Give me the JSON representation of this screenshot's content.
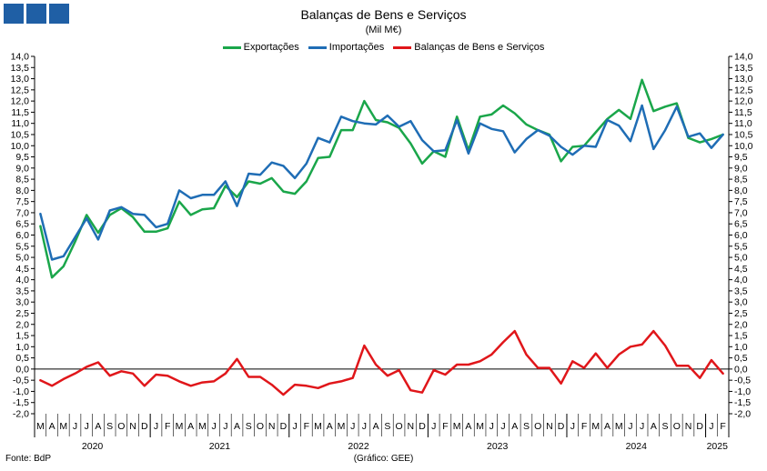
{
  "logo": {
    "name": "bdp-logo-squares"
  },
  "footer": {
    "source": "Fonte: BdP",
    "credit": "(Gráfico: GEE)"
  },
  "chart_data": {
    "type": "line",
    "title": "Balanças de Bens e Serviços",
    "subtitle": "(Mil M€)",
    "ylim": [
      -2.0,
      14.0
    ],
    "ytick_step": 0.5,
    "ytick_labels": [
      "-2,0",
      "-1,5",
      "-1,0",
      "-0,5",
      "0,0",
      "0,5",
      "1,0",
      "1,5",
      "2,0",
      "2,5",
      "3,0",
      "3,5",
      "4,0",
      "4,5",
      "5,0",
      "5,5",
      "6,0",
      "6,5",
      "7,0",
      "7,5",
      "8,0",
      "8,5",
      "9,0",
      "9,5",
      "10,0",
      "10,5",
      "11,0",
      "11,5",
      "12,0",
      "12,5",
      "13,0",
      "13,5",
      "14,0"
    ],
    "grid": false,
    "legend_position": "top",
    "month_labels": [
      "M",
      "A",
      "M",
      "J",
      "J",
      "A",
      "S",
      "O",
      "N",
      "D",
      "J",
      "F",
      "M",
      "A",
      "M",
      "J",
      "J",
      "A",
      "S",
      "O",
      "N",
      "D",
      "J",
      "F",
      "M",
      "A",
      "M",
      "J",
      "J",
      "A",
      "S",
      "O",
      "N",
      "D",
      "J",
      "F",
      "M",
      "A",
      "M",
      "J",
      "J",
      "A",
      "S",
      "O",
      "N",
      "D",
      "J",
      "F",
      "M",
      "A",
      "M",
      "J",
      "J",
      "A",
      "S",
      "O",
      "N",
      "D",
      "J",
      "F"
    ],
    "years": [
      {
        "label": "2020",
        "start": 0,
        "end": 9
      },
      {
        "label": "2021",
        "start": 10,
        "end": 21
      },
      {
        "label": "2022",
        "start": 22,
        "end": 33
      },
      {
        "label": "2023",
        "start": 34,
        "end": 45
      },
      {
        "label": "2024",
        "start": 46,
        "end": 57
      },
      {
        "label": "2025",
        "start": 58,
        "end": 59
      }
    ],
    "series": [
      {
        "name": "Exportações",
        "color": "#1aa64a",
        "values": [
          6.4,
          4.1,
          4.6,
          5.7,
          6.9,
          6.1,
          6.9,
          7.2,
          6.8,
          6.15,
          6.15,
          6.3,
          7.5,
          6.9,
          7.15,
          7.2,
          8.2,
          7.7,
          8.4,
          8.3,
          8.55,
          7.95,
          7.85,
          8.4,
          9.45,
          9.5,
          10.7,
          10.7,
          12.0,
          11.15,
          11.05,
          10.8,
          10.1,
          9.2,
          9.75,
          9.5,
          11.3,
          9.8,
          11.3,
          11.4,
          11.8,
          11.45,
          10.95,
          10.7,
          10.5,
          9.3,
          9.95,
          10.0,
          10.6,
          11.2,
          11.6,
          11.2,
          12.95,
          11.55,
          11.75,
          11.9,
          10.35,
          10.15,
          10.3,
          10.5
        ]
      },
      {
        "name": "Importações",
        "color": "#1f6db5",
        "values": [
          6.95,
          4.9,
          5.05,
          5.9,
          6.75,
          5.8,
          7.1,
          7.25,
          6.95,
          6.9,
          6.35,
          6.5,
          8.0,
          7.65,
          7.8,
          7.8,
          8.4,
          7.3,
          8.75,
          8.7,
          9.25,
          9.1,
          8.55,
          9.2,
          10.35,
          10.15,
          11.3,
          11.1,
          11.0,
          10.95,
          11.35,
          10.85,
          11.1,
          10.25,
          9.75,
          9.8,
          11.15,
          9.65,
          11.0,
          10.75,
          10.65,
          9.7,
          10.3,
          10.7,
          10.45,
          9.95,
          9.6,
          10.0,
          9.95,
          11.15,
          10.9,
          10.2,
          11.8,
          9.85,
          10.7,
          11.75,
          10.4,
          10.55,
          9.9,
          10.5
        ]
      },
      {
        "name": "Balanças de Bens e Serviços",
        "color": "#e0161a",
        "values": [
          -0.5,
          -0.75,
          -0.45,
          -0.2,
          0.1,
          0.3,
          -0.3,
          -0.1,
          -0.2,
          -0.75,
          -0.25,
          -0.3,
          -0.55,
          -0.75,
          -0.6,
          -0.55,
          -0.2,
          0.45,
          -0.35,
          -0.35,
          -0.7,
          -1.15,
          -0.7,
          -0.75,
          -0.85,
          -0.65,
          -0.55,
          -0.4,
          1.05,
          0.2,
          -0.3,
          -0.05,
          -0.95,
          -1.05,
          -0.05,
          -0.25,
          0.2,
          0.2,
          0.35,
          0.65,
          1.2,
          1.7,
          0.65,
          0.05,
          0.05,
          -0.65,
          0.35,
          0.05,
          0.7,
          0.05,
          0.65,
          1.0,
          1.1,
          1.7,
          1.05,
          0.15,
          0.15,
          -0.4,
          0.4,
          -0.2
        ]
      }
    ]
  }
}
